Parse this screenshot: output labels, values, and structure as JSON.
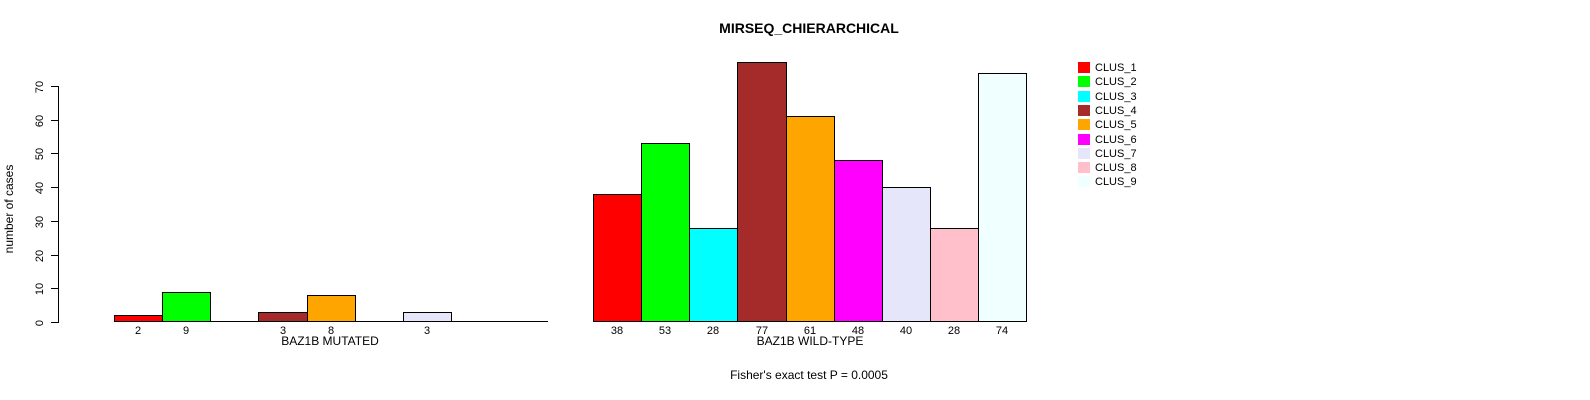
{
  "chart_data": {
    "type": "bar",
    "title": "MIRSEQ_CHIERARCHICAL",
    "ylabel": "number of cases",
    "ylim": [
      0,
      70
    ],
    "ytick_step": 10,
    "yticks": [
      0,
      10,
      20,
      30,
      40,
      50,
      60,
      70
    ],
    "grid": false,
    "legend_position": "top-right",
    "bar_border_color": "#000000",
    "clusters": [
      {
        "name": "CLUS_1",
        "color": "#FF0000"
      },
      {
        "name": "CLUS_2",
        "color": "#00FF00"
      },
      {
        "name": "CLUS_3",
        "color": "#00FFFF"
      },
      {
        "name": "CLUS_4",
        "color": "#A52A2A"
      },
      {
        "name": "CLUS_5",
        "color": "#FFA500"
      },
      {
        "name": "CLUS_6",
        "color": "#FF00FF"
      },
      {
        "name": "CLUS_7",
        "color": "#E6E6FA"
      },
      {
        "name": "CLUS_8",
        "color": "#FFC0CB"
      },
      {
        "name": "CLUS_9",
        "color": "#F0FFFF"
      }
    ],
    "groups": [
      {
        "label": "BAZ1B MUTATED",
        "values": [
          2,
          9,
          0,
          3,
          8,
          0,
          3,
          0,
          0
        ]
      },
      {
        "label": "BAZ1B WILD-TYPE",
        "values": [
          38,
          53,
          28,
          77,
          61,
          48,
          40,
          28,
          74
        ]
      }
    ],
    "annotation": "Fisher's exact test P = 0.0005"
  }
}
